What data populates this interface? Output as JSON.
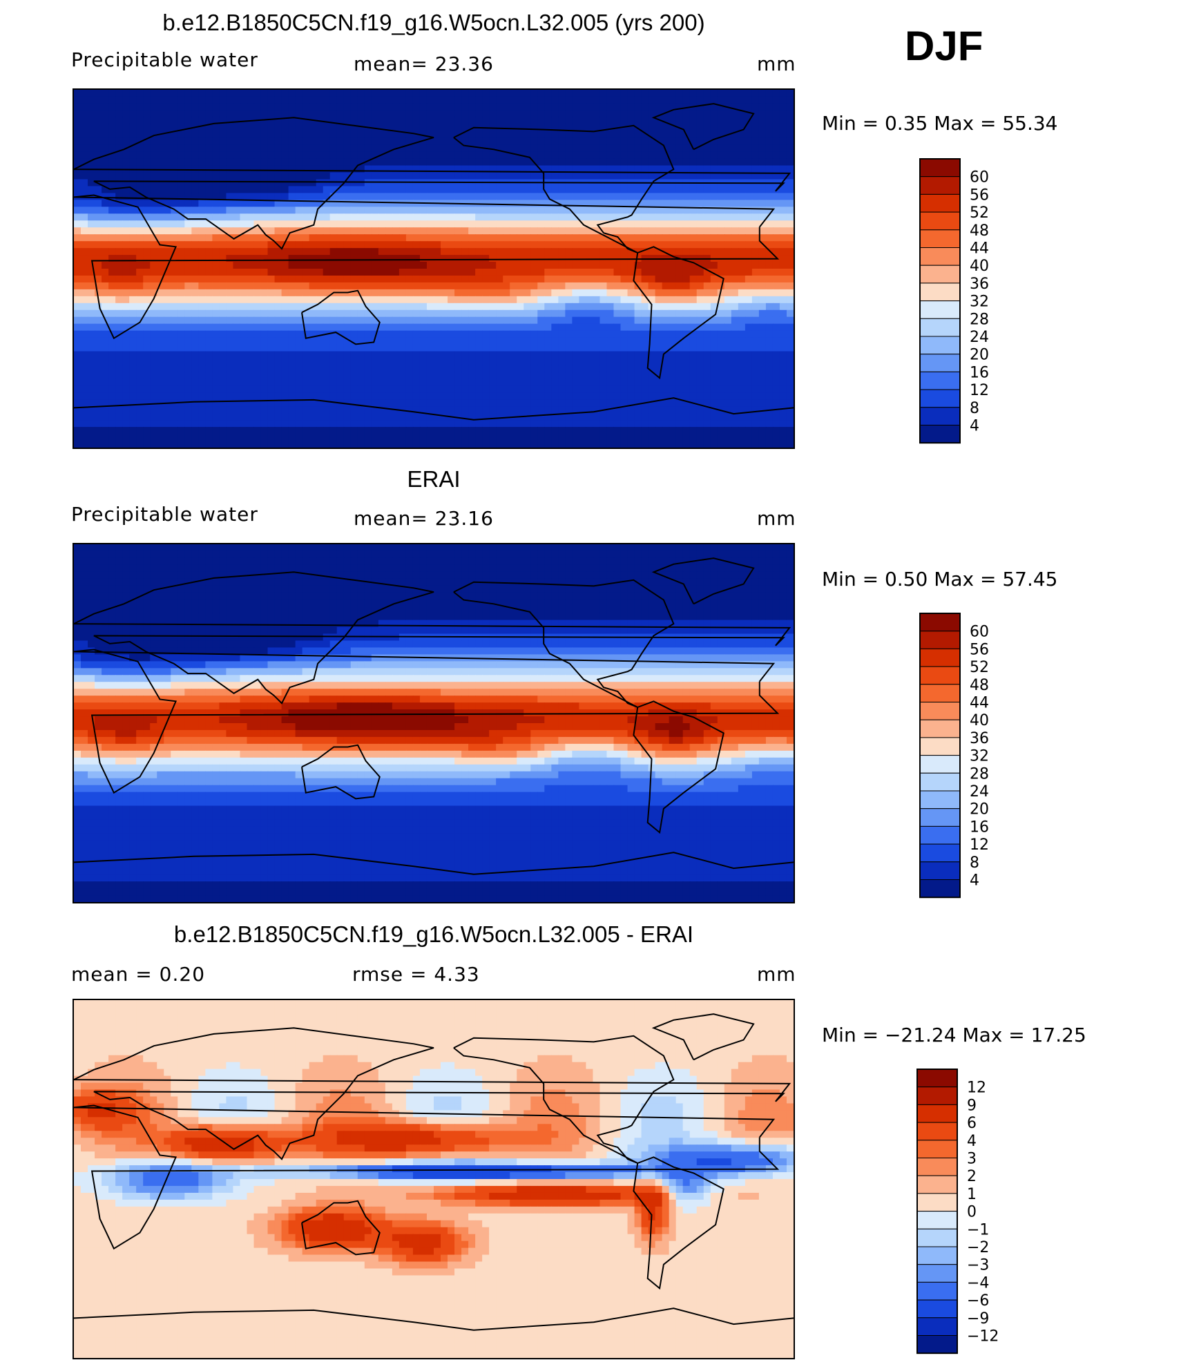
{
  "season": "DJF",
  "panels": [
    {
      "title": "b.e12.B1850C5CN.f19_g16.W5ocn.L32.005 (yrs 200)",
      "left_label": "Precipitable  water",
      "center_label": "mean=   23.36",
      "units": "mm",
      "minmax": "Min  =     0.35  Max  =    55.34",
      "colorbar": {
        "labels": [
          "60",
          "56",
          "52",
          "48",
          "44",
          "40",
          "36",
          "32",
          "28",
          "24",
          "20",
          "16",
          "12",
          "8",
          "4"
        ],
        "colors": [
          "#8b0a00",
          "#b31a00",
          "#d62f00",
          "#ea4a12",
          "#f4682e",
          "#f98b5a",
          "#fbb28e",
          "#fcdcc5",
          "#d9eafb",
          "#b5d5fb",
          "#8fb9fa",
          "#6596f5",
          "#3a6ef0",
          "#1a4be0",
          "#0a2dbd",
          "#031a8a"
        ]
      },
      "field": "model"
    },
    {
      "title": "ERAI",
      "left_label": "Precipitable  water",
      "center_label": "mean=   23.16",
      "units": "mm",
      "minmax": "Min  =     0.50  Max  =    57.45",
      "colorbar": {
        "labels": [
          "60",
          "56",
          "52",
          "48",
          "44",
          "40",
          "36",
          "32",
          "28",
          "24",
          "20",
          "16",
          "12",
          "8",
          "4"
        ],
        "colors": [
          "#8b0a00",
          "#b31a00",
          "#d62f00",
          "#ea4a12",
          "#f4682e",
          "#f98b5a",
          "#fbb28e",
          "#fcdcc5",
          "#d9eafb",
          "#b5d5fb",
          "#8fb9fa",
          "#6596f5",
          "#3a6ef0",
          "#1a4be0",
          "#0a2dbd",
          "#031a8a"
        ]
      },
      "field": "obs"
    },
    {
      "title": "b.e12.B1850C5CN.f19_g16.W5ocn.L32.005 - ERAI",
      "left_label": "mean  =     0.20",
      "center_label": "rmse  =     4.33",
      "units": "mm",
      "minmax": "Min  = −21.24  Max  =    17.25",
      "colorbar": {
        "labels": [
          "12",
          "9",
          "6",
          "4",
          "3",
          "2",
          "1",
          "0",
          "−1",
          "−2",
          "−3",
          "−4",
          "−6",
          "−9",
          "−12"
        ],
        "colors": [
          "#8b0a00",
          "#b31a00",
          "#d62f00",
          "#ea4a12",
          "#f4682e",
          "#f98b5a",
          "#fbb28e",
          "#fcdcc5",
          "#d9eafb",
          "#b5d5fb",
          "#8fb9fa",
          "#6596f5",
          "#3a6ef0",
          "#1a4be0",
          "#0a2dbd",
          "#031a8a"
        ]
      },
      "field": "diff"
    }
  ],
  "chart_data": [
    {
      "type": "heatmap",
      "title": "b.e12.B1850C5CN.f19_g16.W5ocn.L32.005 (yrs 200)",
      "variable": "Precipitable  water",
      "units": "mm",
      "mean": 23.36,
      "min": 0.35,
      "max": 55.34,
      "contour_levels": [
        4,
        8,
        12,
        16,
        20,
        24,
        28,
        32,
        36,
        40,
        44,
        48,
        52,
        56,
        60
      ]
    },
    {
      "type": "heatmap",
      "title": "ERAI",
      "variable": "Precipitable  water",
      "units": "mm",
      "mean": 23.16,
      "min": 0.5,
      "max": 57.45,
      "contour_levels": [
        4,
        8,
        12,
        16,
        20,
        24,
        28,
        32,
        36,
        40,
        44,
        48,
        52,
        56,
        60
      ]
    },
    {
      "type": "heatmap",
      "title": "b.e12.B1850C5CN.f19_g16.W5ocn.L32.005 - ERAI",
      "units": "mm",
      "mean": 0.2,
      "rmse": 4.33,
      "min": -21.24,
      "max": 17.25,
      "contour_levels": [
        -12,
        -9,
        -6,
        -4,
        -3,
        -2,
        -1,
        0,
        1,
        2,
        3,
        4,
        6,
        9,
        12
      ]
    }
  ]
}
